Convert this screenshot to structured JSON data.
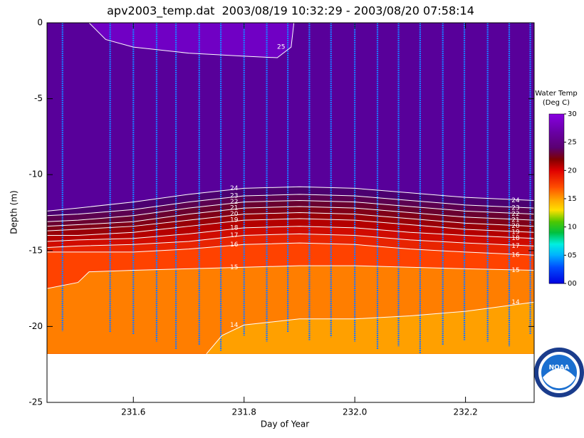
{
  "chart_data": {
    "type": "contour",
    "title": "apv2003_temp.dat  2003/08/19 10:32:29 - 2003/08/20 07:58:14",
    "x_label": "Day of Year",
    "y_label": "Depth (m)",
    "xlim": [
      231.444,
      232.324
    ],
    "ylim": [
      -25,
      0
    ],
    "xticks": [
      231.6,
      231.8,
      {
        "value": 232,
        "label": "232.0"
      },
      232.2
    ],
    "yticks": [
      0,
      -5,
      -10,
      -15,
      -20,
      -25
    ],
    "data_floor": -21.8,
    "background_color": "#58009a",
    "line_color": "#ffffff",
    "contours": [
      {
        "level": 25,
        "fill_side": "above",
        "color": "#7000c4",
        "x": [
          231.52,
          231.55,
          231.6,
          231.7,
          231.8,
          231.86,
          231.885,
          231.89
        ],
        "depth": [
          0,
          -1.1,
          -1.6,
          -2.0,
          -2.2,
          -2.3,
          -1.6,
          0
        ]
      },
      {
        "level": 24,
        "fill_side": "below",
        "color": "#4c0070",
        "x": [
          231.444,
          231.5,
          231.6,
          231.7,
          231.8,
          231.9,
          232.0,
          232.1,
          232.2,
          232.324
        ],
        "depth": [
          -12.4,
          -12.2,
          -11.8,
          -11.3,
          -10.9,
          -10.8,
          -10.9,
          -11.2,
          -11.5,
          -11.7
        ]
      },
      {
        "level": 23,
        "fill_side": "below",
        "color": "#5c0050",
        "x": [
          231.444,
          231.5,
          231.6,
          231.7,
          231.8,
          231.9,
          232.0,
          232.1,
          232.2,
          232.324
        ],
        "depth": [
          -12.7,
          -12.6,
          -12.3,
          -11.8,
          -11.4,
          -11.3,
          -11.4,
          -11.7,
          -12.0,
          -12.2
        ]
      },
      {
        "level": 22,
        "fill_side": "below",
        "color": "#6a0030",
        "x": [
          231.444,
          231.5,
          231.6,
          231.7,
          231.8,
          231.9,
          232.0,
          232.1,
          232.2,
          232.324
        ],
        "depth": [
          -13.1,
          -13.0,
          -12.7,
          -12.2,
          -11.8,
          -11.7,
          -11.8,
          -12.1,
          -12.4,
          -12.6
        ]
      },
      {
        "level": 21,
        "fill_side": "below",
        "color": "#800018",
        "x": [
          231.444,
          231.5,
          231.6,
          231.7,
          231.8,
          231.9,
          232.0,
          232.1,
          232.2,
          232.324
        ],
        "depth": [
          -13.4,
          -13.3,
          -13.1,
          -12.6,
          -12.2,
          -12.1,
          -12.2,
          -12.5,
          -12.8,
          -13.0
        ]
      },
      {
        "level": 20,
        "fill_side": "below",
        "color": "#980008",
        "x": [
          231.444,
          231.5,
          231.6,
          231.7,
          231.8,
          231.9,
          232.0,
          232.1,
          232.2,
          232.324
        ],
        "depth": [
          -13.7,
          -13.6,
          -13.4,
          -13.0,
          -12.6,
          -12.5,
          -12.6,
          -12.9,
          -13.2,
          -13.4
        ]
      },
      {
        "level": 19,
        "fill_side": "below",
        "color": "#b40000",
        "x": [
          231.444,
          231.5,
          231.6,
          231.7,
          231.8,
          231.9,
          232.0,
          232.1,
          232.2,
          232.324
        ],
        "depth": [
          -14.0,
          -14.0,
          -13.8,
          -13.4,
          -13.0,
          -12.9,
          -13.0,
          -13.3,
          -13.6,
          -13.8
        ]
      },
      {
        "level": 18,
        "fill_side": "below",
        "color": "#d00c00",
        "x": [
          231.444,
          231.5,
          231.6,
          231.7,
          231.8,
          231.9,
          232.0,
          232.1,
          232.2,
          232.324
        ],
        "depth": [
          -14.4,
          -14.3,
          -14.2,
          -13.9,
          -13.5,
          -13.4,
          -13.5,
          -13.8,
          -14.0,
          -14.2
        ]
      },
      {
        "level": 17,
        "fill_side": "below",
        "color": "#e82400",
        "x": [
          231.444,
          231.5,
          231.6,
          231.7,
          231.8,
          231.9,
          232.0,
          232.1,
          232.2,
          232.324
        ],
        "depth": [
          -14.8,
          -14.7,
          -14.6,
          -14.4,
          -14.0,
          -13.9,
          -14.0,
          -14.3,
          -14.5,
          -14.7
        ]
      },
      {
        "level": 16,
        "fill_side": "below",
        "color": "#ff4200",
        "x": [
          231.444,
          231.5,
          231.6,
          231.7,
          231.8,
          231.9,
          232.0,
          232.1,
          232.2,
          232.324
        ],
        "depth": [
          -15.1,
          -15.1,
          -15.1,
          -14.9,
          -14.6,
          -14.5,
          -14.6,
          -14.9,
          -15.1,
          -15.3
        ]
      },
      {
        "level": 15,
        "fill_side": "below",
        "color": "#ff7e00",
        "x": [
          231.444,
          231.5,
          231.52,
          231.6,
          231.7,
          231.8,
          231.9,
          232.0,
          232.1,
          232.2,
          232.324
        ],
        "depth": [
          -17.5,
          -17.1,
          -16.4,
          -16.3,
          -16.2,
          -16.1,
          -16.0,
          -16.0,
          -16.1,
          -16.2,
          -16.3
        ]
      },
      {
        "level": 14,
        "fill_side": "below",
        "color": "#ffa000",
        "x": [
          231.732,
          231.76,
          231.8,
          231.9,
          232.0,
          232.1,
          232.2,
          232.324
        ],
        "depth": [
          -21.8,
          -20.6,
          -19.9,
          -19.5,
          -19.5,
          -19.3,
          -19.0,
          -18.4
        ]
      }
    ],
    "cast_color": "#1e78ff",
    "casts_x": [
      231.472,
      231.558,
      231.6,
      231.642,
      231.677,
      231.719,
      231.758,
      231.8,
      231.841,
      231.879,
      231.918,
      231.957,
      232.0,
      232.041,
      232.079,
      232.118,
      232.159,
      232.198,
      232.24,
      232.279,
      232.317
    ],
    "casts_bottom": [
      -20.3,
      -20.4,
      -20.5,
      -21.0,
      -21.5,
      -21.2,
      -21.6,
      -20.6,
      -21.0,
      -20.4,
      -20.9,
      -20.7,
      -21.0,
      -21.5,
      -21.3,
      -21.8,
      -21.2,
      -20.9,
      -21.0,
      -21.3,
      -20.5
    ],
    "colorbar": {
      "title": [
        "Water Temp",
        "(Deg C)"
      ],
      "range": [
        0,
        30
      ],
      "ticks": [
        {
          "value": 0,
          "label": "00"
        },
        {
          "value": 5,
          "label": "05"
        },
        10,
        15,
        20,
        25,
        30
      ],
      "stops": [
        [
          0,
          "#0000e0"
        ],
        [
          3,
          "#0050ff"
        ],
        [
          5,
          "#00b0ff"
        ],
        [
          7,
          "#00f0e0"
        ],
        [
          9,
          "#00c040"
        ],
        [
          11,
          "#50c800"
        ],
        [
          13,
          "#ffe000"
        ],
        [
          15,
          "#ffa000"
        ],
        [
          17,
          "#ff5000"
        ],
        [
          20,
          "#e00000"
        ],
        [
          22,
          "#800000"
        ],
        [
          24,
          "#5a0070"
        ],
        [
          27,
          "#6a00a8"
        ],
        [
          30,
          "#8800e0"
        ]
      ]
    },
    "logo_text": "NOAA"
  }
}
